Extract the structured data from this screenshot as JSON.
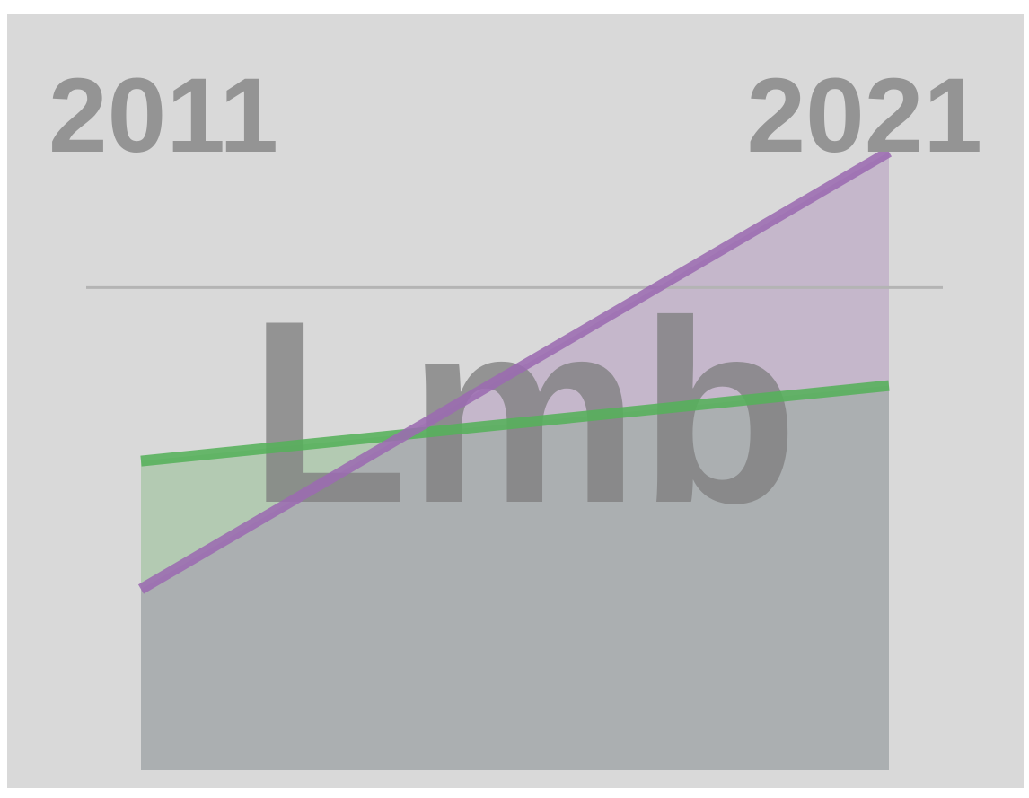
{
  "chart_data": {
    "type": "area",
    "x_start_label": "2011",
    "x_end_label": "2021",
    "center_label": "Lmb",
    "x": [
      "2011",
      "2021"
    ],
    "ylim": [
      0,
      100
    ],
    "reference_line": 64,
    "series": [
      {
        "values": [
          24,
          82
        ],
        "line_color": "#9b6bb0",
        "fill_color": "#c5b7cb"
      },
      {
        "values": [
          41,
          51
        ],
        "line_color": "#55b05a",
        "fill_color": "#b3cab2"
      }
    ],
    "overlap_fill_color": "#abafb1",
    "reference_line_color": "#b4b4b4",
    "grid": false,
    "legend": "none"
  }
}
